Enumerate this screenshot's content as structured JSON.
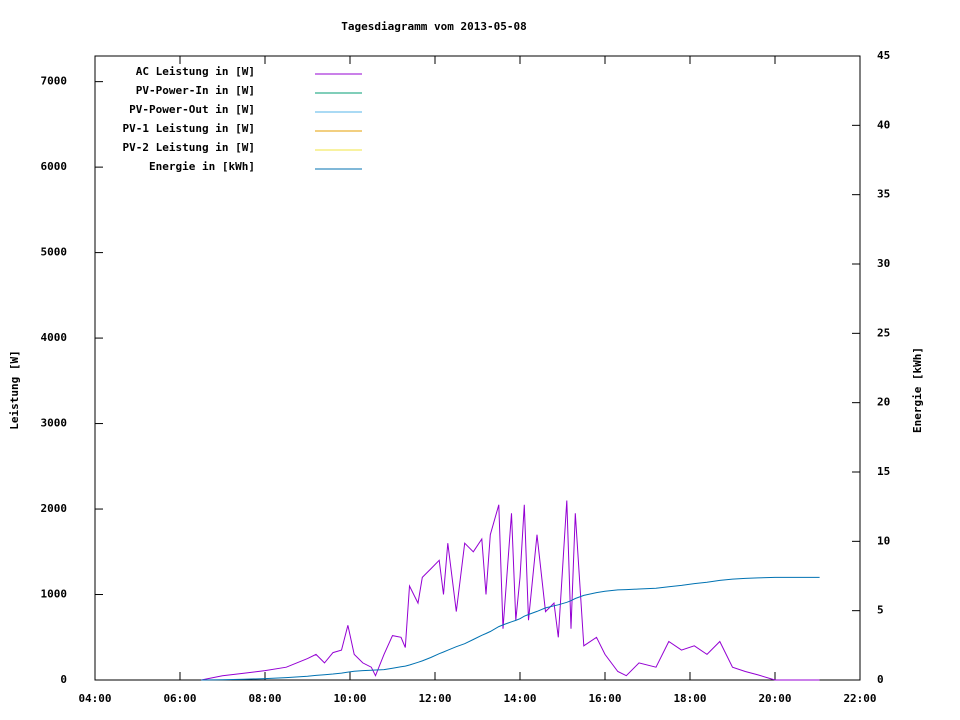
{
  "chart_data": {
    "type": "line",
    "title": "Tagesdiagramm vom 2013-05-08",
    "y_label": "Leistung [W]",
    "y2_label": "Energie [kWh]",
    "legend": "top-left",
    "xlim": [
      4,
      22
    ],
    "xticks": [
      {
        "value": 4,
        "label": "04:00"
      },
      {
        "value": 6,
        "label": "06:00"
      },
      {
        "value": 8,
        "label": "08:00"
      },
      {
        "value": 10,
        "label": "10:00"
      },
      {
        "value": 12,
        "label": "12:00"
      },
      {
        "value": 14,
        "label": "14:00"
      },
      {
        "value": 16,
        "label": "16:00"
      },
      {
        "value": 18,
        "label": "18:00"
      },
      {
        "value": 20,
        "label": "20:00"
      },
      {
        "value": 22,
        "label": "22:00"
      }
    ],
    "ylim": [
      0,
      7300
    ],
    "yticks": [
      0,
      1000,
      2000,
      3000,
      4000,
      5000,
      6000,
      7000
    ],
    "y2lim": [
      0,
      45
    ],
    "y2ticks": [
      0,
      5,
      10,
      15,
      20,
      25,
      30,
      35,
      40,
      45
    ],
    "x": [
      6.5,
      7,
      7.5,
      8,
      8.5,
      9,
      9.2,
      9.4,
      9.6,
      9.8,
      9.95,
      10.1,
      10.3,
      10.5,
      10.6,
      10.8,
      11,
      11.2,
      11.3,
      11.4,
      11.6,
      11.7,
      11.9,
      12.1,
      12.2,
      12.3,
      12.5,
      12.7,
      12.9,
      13.1,
      13.2,
      13.3,
      13.5,
      13.6,
      13.8,
      13.9,
      14,
      14.1,
      14.2,
      14.4,
      14.6,
      14.8,
      14.9,
      15.1,
      15.2,
      15.3,
      15.5,
      15.8,
      16,
      16.3,
      16.5,
      16.8,
      17.2,
      17.5,
      17.8,
      18.1,
      18.4,
      18.7,
      19,
      19.3,
      19.6,
      20,
      20.5,
      21,
      21.05
    ],
    "series": [
      {
        "name": "AC Leistung in [W]",
        "color": "#9400d3",
        "values": [
          0,
          50,
          80,
          110,
          150,
          250,
          300,
          200,
          320,
          350,
          640,
          300,
          200,
          150,
          50,
          300,
          520,
          500,
          380,
          1100,
          900,
          1200,
          1300,
          1400,
          1000,
          1600,
          800,
          1600,
          1500,
          1650,
          1000,
          1700,
          2050,
          600,
          1950,
          700,
          1200,
          2050,
          700,
          1700,
          800,
          900,
          500,
          2100,
          600,
          1950,
          400,
          500,
          300,
          100,
          50,
          200,
          150,
          450,
          350,
          400,
          300,
          450,
          150,
          100,
          60,
          0,
          0,
          0,
          0
        ]
      },
      {
        "name": "PV-Power-In in [W]",
        "color": "#009e73",
        "values": [
          null,
          null,
          null,
          null,
          null,
          null,
          null,
          null,
          null,
          null,
          null,
          null,
          null,
          null,
          null,
          null,
          null,
          null,
          null,
          null,
          null,
          null,
          null,
          null,
          null,
          null,
          null,
          null,
          null,
          null,
          null,
          null,
          null,
          null,
          null,
          null,
          null,
          null,
          null,
          null,
          null,
          null,
          null,
          null,
          null,
          null,
          null,
          null,
          null,
          null,
          null,
          null,
          null,
          null,
          null,
          null,
          null,
          null,
          null,
          null,
          null,
          null,
          null,
          null,
          null
        ]
      },
      {
        "name": "PV-Power-Out in [W]",
        "color": "#56b4e9",
        "values": [
          null,
          null,
          null,
          null,
          null,
          null,
          null,
          null,
          null,
          null,
          null,
          null,
          null,
          null,
          null,
          null,
          null,
          null,
          null,
          null,
          null,
          null,
          null,
          null,
          null,
          null,
          null,
          null,
          null,
          null,
          null,
          null,
          null,
          null,
          null,
          null,
          null,
          null,
          null,
          null,
          null,
          null,
          null,
          null,
          null,
          null,
          null,
          null,
          null,
          null,
          null,
          null,
          null,
          null,
          null,
          null,
          null,
          null,
          null,
          null,
          null,
          null,
          null,
          null,
          null
        ]
      },
      {
        "name": "PV-1 Leistung in [W]",
        "color": "#e69f00",
        "values": [
          null,
          null,
          null,
          null,
          null,
          null,
          null,
          null,
          null,
          null,
          null,
          null,
          null,
          null,
          null,
          null,
          null,
          null,
          null,
          null,
          null,
          null,
          null,
          null,
          null,
          null,
          null,
          null,
          null,
          null,
          null,
          null,
          null,
          null,
          null,
          null,
          null,
          null,
          null,
          null,
          null,
          null,
          null,
          null,
          null,
          null,
          null,
          null,
          null,
          null,
          null,
          null,
          null,
          null,
          null,
          null,
          null,
          null,
          null,
          null,
          null,
          null,
          null,
          null,
          null
        ]
      },
      {
        "name": "PV-2 Leistung in [W]",
        "color": "#f0e442",
        "values": [
          null,
          null,
          null,
          null,
          null,
          null,
          null,
          null,
          null,
          null,
          null,
          null,
          null,
          null,
          null,
          null,
          null,
          null,
          null,
          null,
          null,
          null,
          null,
          null,
          null,
          null,
          null,
          null,
          null,
          null,
          null,
          null,
          null,
          null,
          null,
          null,
          null,
          null,
          null,
          null,
          null,
          null,
          null,
          null,
          null,
          null,
          null,
          null,
          null,
          null,
          null,
          null,
          null,
          null,
          null,
          null,
          null,
          null,
          null,
          null,
          null,
          null,
          null,
          null,
          null
        ]
      },
      {
        "name": "Energie in [kWh]",
        "color": "#0072b2",
        "axis": "y2",
        "values": [
          0,
          0.02,
          0.05,
          0.1,
          0.17,
          0.27,
          0.33,
          0.38,
          0.43,
          0.5,
          0.57,
          0.63,
          0.68,
          0.71,
          0.72,
          0.75,
          0.85,
          0.95,
          1.0,
          1.08,
          1.28,
          1.38,
          1.62,
          1.9,
          2.02,
          2.15,
          2.4,
          2.62,
          2.92,
          3.22,
          3.35,
          3.5,
          3.85,
          3.97,
          4.2,
          4.3,
          4.42,
          4.6,
          4.72,
          4.95,
          5.2,
          5.35,
          5.42,
          5.6,
          5.72,
          5.88,
          6.1,
          6.3,
          6.4,
          6.5,
          6.52,
          6.56,
          6.62,
          6.72,
          6.82,
          6.95,
          7.05,
          7.18,
          7.28,
          7.33,
          7.36,
          7.4,
          7.4,
          7.4,
          7.4
        ]
      }
    ]
  }
}
